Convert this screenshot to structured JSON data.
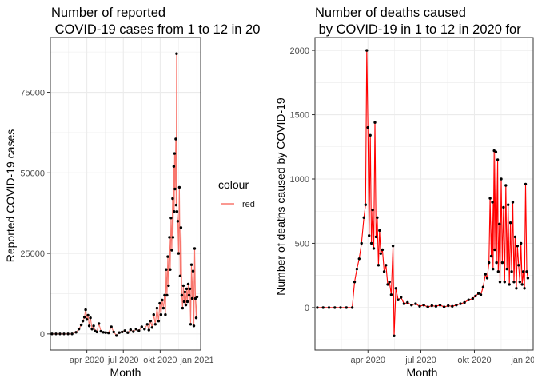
{
  "chart_data": [
    {
      "type": "line",
      "title_line1": "Number of reported",
      "title_line2": " COVID-19 cases from 1 to 12 in 20",
      "xlabel": "Month",
      "ylabel": "Reported COVID-19 cases",
      "x_ticks": [
        "apr 2020",
        "jul 2020",
        "okt 2020",
        "jan 2021"
      ],
      "y_ticks": [
        "0",
        "25000",
        "50000",
        "75000"
      ],
      "xlim": [
        "2020-01-01",
        "2021-01-10"
      ],
      "ylim": [
        -5000,
        92000
      ],
      "grid": true,
      "colors": {
        "line": "#f8766d",
        "points": "#000000",
        "panel_border": "#333333",
        "grid": "#ebebeb"
      },
      "series": [
        {
          "name": "red",
          "points": [
            [
              "2020-01-05",
              0
            ],
            [
              "2020-01-15",
              0
            ],
            [
              "2020-01-25",
              0
            ],
            [
              "2020-02-04",
              0
            ],
            [
              "2020-02-14",
              0
            ],
            [
              "2020-02-24",
              0
            ],
            [
              "2020-03-05",
              500
            ],
            [
              "2020-03-12",
              1500
            ],
            [
              "2020-03-18",
              2800
            ],
            [
              "2020-03-22",
              4000
            ],
            [
              "2020-03-26",
              5200
            ],
            [
              "2020-03-29",
              7500
            ],
            [
              "2020-04-01",
              4500
            ],
            [
              "2020-04-04",
              5800
            ],
            [
              "2020-04-07",
              2500
            ],
            [
              "2020-04-10",
              5000
            ],
            [
              "2020-04-14",
              1500
            ],
            [
              "2020-04-18",
              2500
            ],
            [
              "2020-04-22",
              900
            ],
            [
              "2020-04-26",
              600
            ],
            [
              "2020-05-01",
              3200
            ],
            [
              "2020-05-06",
              800
            ],
            [
              "2020-05-12",
              500
            ],
            [
              "2020-05-18",
              400
            ],
            [
              "2020-05-25",
              300
            ],
            [
              "2020-06-01",
              2200
            ],
            [
              "2020-06-07",
              600
            ],
            [
              "2020-06-14",
              -500
            ],
            [
              "2020-06-21",
              400
            ],
            [
              "2020-06-28",
              600
            ],
            [
              "2020-07-05",
              1000
            ],
            [
              "2020-07-12",
              400
            ],
            [
              "2020-07-19",
              1300
            ],
            [
              "2020-07-26",
              700
            ],
            [
              "2020-08-02",
              1500
            ],
            [
              "2020-08-09",
              1000
            ],
            [
              "2020-08-16",
              2200
            ],
            [
              "2020-08-23",
              1500
            ],
            [
              "2020-08-30",
              3000
            ],
            [
              "2020-09-03",
              1200
            ],
            [
              "2020-09-07",
              4000
            ],
            [
              "2020-09-11",
              2000
            ],
            [
              "2020-09-15",
              6000
            ],
            [
              "2020-09-19",
              3000
            ],
            [
              "2020-09-23",
              8000
            ],
            [
              "2020-09-27",
              4000
            ],
            [
              "2020-09-30",
              9500
            ],
            [
              "2020-10-03",
              6000
            ],
            [
              "2020-10-06",
              10500
            ],
            [
              "2020-10-09",
              8000
            ],
            [
              "2020-10-12",
              12000
            ],
            [
              "2020-10-14",
              6000
            ],
            [
              "2020-10-16",
              20000
            ],
            [
              "2020-10-18",
              12000
            ],
            [
              "2020-10-20",
              24000
            ],
            [
              "2020-10-22",
              15000
            ],
            [
              "2020-10-24",
              30000
            ],
            [
              "2020-10-26",
              20000
            ],
            [
              "2020-10-28",
              36000
            ],
            [
              "2020-10-30",
              26000
            ],
            [
              "2020-11-01",
              42000
            ],
            [
              "2020-11-02",
              30000
            ],
            [
              "2020-11-04",
              52000
            ],
            [
              "2020-11-05",
              38000
            ],
            [
              "2020-11-06",
              56000
            ],
            [
              "2020-11-07",
              45000
            ],
            [
              "2020-11-09",
              60500
            ],
            [
              "2020-11-10",
              40000
            ],
            [
              "2020-11-11",
              87000
            ],
            [
              "2020-11-12",
              38000
            ],
            [
              "2020-11-14",
              35000
            ],
            [
              "2020-11-16",
              25000
            ],
            [
              "2020-11-18",
              45500
            ],
            [
              "2020-11-20",
              18000
            ],
            [
              "2020-11-22",
              33000
            ],
            [
              "2020-11-24",
              12000
            ],
            [
              "2020-11-26",
              8000
            ],
            [
              "2020-11-28",
              15000
            ],
            [
              "2020-11-30",
              10000
            ],
            [
              "2020-12-02",
              13000
            ],
            [
              "2020-12-04",
              9000
            ],
            [
              "2020-12-06",
              14000
            ],
            [
              "2020-12-08",
              10000
            ],
            [
              "2020-12-10",
              15500
            ],
            [
              "2020-12-12",
              12000
            ],
            [
              "2020-12-14",
              14000
            ],
            [
              "2020-12-16",
              3000
            ],
            [
              "2020-12-18",
              21500
            ],
            [
              "2020-12-20",
              11000
            ],
            [
              "2020-12-22",
              19500
            ],
            [
              "2020-12-24",
              2500
            ],
            [
              "2020-12-26",
              26500
            ],
            [
              "2020-12-28",
              11000
            ],
            [
              "2020-12-30",
              5000
            ],
            [
              "2021-01-01",
              11500
            ]
          ]
        }
      ]
    },
    {
      "type": "line",
      "title_line1": "Number of deaths caused",
      "title_line2": " by COVID-19 in 1 to 12 in 2020 for",
      "xlabel": "Month",
      "ylabel": "Number of deaths caused by COVID-19",
      "x_ticks": [
        "apr 2020",
        "jul 2020",
        "okt 2020",
        "jan 2021"
      ],
      "y_ticks": [
        "0",
        "500",
        "1000",
        "1500",
        "2000"
      ],
      "xlim": [
        "2020-01-01",
        "2021-01-10"
      ],
      "ylim": [
        -330,
        2100
      ],
      "grid": true,
      "colors": {
        "line": "#ff0000",
        "points": "#000000",
        "panel_border": "#333333",
        "grid": "#ebebeb"
      },
      "series": [
        {
          "points": [
            [
              "2020-01-05",
              0
            ],
            [
              "2020-01-15",
              0
            ],
            [
              "2020-01-25",
              0
            ],
            [
              "2020-02-04",
              0
            ],
            [
              "2020-02-14",
              0
            ],
            [
              "2020-02-24",
              0
            ],
            [
              "2020-03-05",
              0
            ],
            [
              "2020-03-09",
              200
            ],
            [
              "2020-03-13",
              300
            ],
            [
              "2020-03-17",
              380
            ],
            [
              "2020-03-21",
              500
            ],
            [
              "2020-03-25",
              700
            ],
            [
              "2020-03-28",
              800
            ],
            [
              "2020-03-30",
              2000
            ],
            [
              "2020-04-01",
              1400
            ],
            [
              "2020-04-03",
              560
            ],
            [
              "2020-04-05",
              1340
            ],
            [
              "2020-04-07",
              500
            ],
            [
              "2020-04-09",
              760
            ],
            [
              "2020-04-11",
              460
            ],
            [
              "2020-04-13",
              1440
            ],
            [
              "2020-04-15",
              550
            ],
            [
              "2020-04-17",
              700
            ],
            [
              "2020-04-19",
              330
            ],
            [
              "2020-04-21",
              600
            ],
            [
              "2020-04-23",
              420
            ],
            [
              "2020-04-26",
              450
            ],
            [
              "2020-04-29",
              280
            ],
            [
              "2020-05-02",
              330
            ],
            [
              "2020-05-05",
              180
            ],
            [
              "2020-05-08",
              200
            ],
            [
              "2020-05-11",
              100
            ],
            [
              "2020-05-14",
              480
            ],
            [
              "2020-05-16",
              -220
            ],
            [
              "2020-05-19",
              150
            ],
            [
              "2020-05-23",
              60
            ],
            [
              "2020-05-28",
              80
            ],
            [
              "2020-06-02",
              30
            ],
            [
              "2020-06-08",
              40
            ],
            [
              "2020-06-15",
              20
            ],
            [
              "2020-06-22",
              30
            ],
            [
              "2020-06-29",
              10
            ],
            [
              "2020-07-06",
              20
            ],
            [
              "2020-07-13",
              5
            ],
            [
              "2020-07-20",
              15
            ],
            [
              "2020-07-27",
              10
            ],
            [
              "2020-08-03",
              20
            ],
            [
              "2020-08-10",
              5
            ],
            [
              "2020-08-17",
              15
            ],
            [
              "2020-08-24",
              10
            ],
            [
              "2020-08-31",
              20
            ],
            [
              "2020-09-07",
              30
            ],
            [
              "2020-09-14",
              40
            ],
            [
              "2020-09-21",
              60
            ],
            [
              "2020-09-28",
              70
            ],
            [
              "2020-10-03",
              90
            ],
            [
              "2020-10-08",
              110
            ],
            [
              "2020-10-12",
              100
            ],
            [
              "2020-10-16",
              160
            ],
            [
              "2020-10-20",
              260
            ],
            [
              "2020-10-23",
              230
            ],
            [
              "2020-10-26",
              350
            ],
            [
              "2020-10-28",
              850
            ],
            [
              "2020-10-30",
              400
            ],
            [
              "2020-11-01",
              820
            ],
            [
              "2020-11-02",
              300
            ],
            [
              "2020-11-04",
              1220
            ],
            [
              "2020-11-05",
              450
            ],
            [
              "2020-11-07",
              1210
            ],
            [
              "2020-11-08",
              350
            ],
            [
              "2020-11-10",
              1150
            ],
            [
              "2020-11-11",
              280
            ],
            [
              "2020-11-13",
              650
            ],
            [
              "2020-11-14",
              200
            ],
            [
              "2020-11-16",
              1000
            ],
            [
              "2020-11-18",
              350
            ],
            [
              "2020-11-20",
              780
            ],
            [
              "2020-11-22",
              200
            ],
            [
              "2020-11-24",
              950
            ],
            [
              "2020-11-26",
              300
            ],
            [
              "2020-11-28",
              800
            ],
            [
              "2020-11-30",
              180
            ],
            [
              "2020-12-02",
              660
            ],
            [
              "2020-12-04",
              280
            ],
            [
              "2020-12-06",
              820
            ],
            [
              "2020-12-08",
              200
            ],
            [
              "2020-12-10",
              550
            ],
            [
              "2020-12-12",
              150
            ],
            [
              "2020-12-14",
              480
            ],
            [
              "2020-12-16",
              330
            ],
            [
              "2020-12-18",
              200
            ],
            [
              "2020-12-20",
              500
            ],
            [
              "2020-12-22",
              180
            ],
            [
              "2020-12-24",
              280
            ],
            [
              "2020-12-26",
              150
            ],
            [
              "2020-12-28",
              960
            ],
            [
              "2020-12-30",
              280
            ],
            [
              "2021-01-01",
              230
            ]
          ]
        }
      ]
    }
  ],
  "legend": {
    "title": "colour",
    "items": [
      {
        "label": "red",
        "color": "#f8766d"
      }
    ]
  }
}
